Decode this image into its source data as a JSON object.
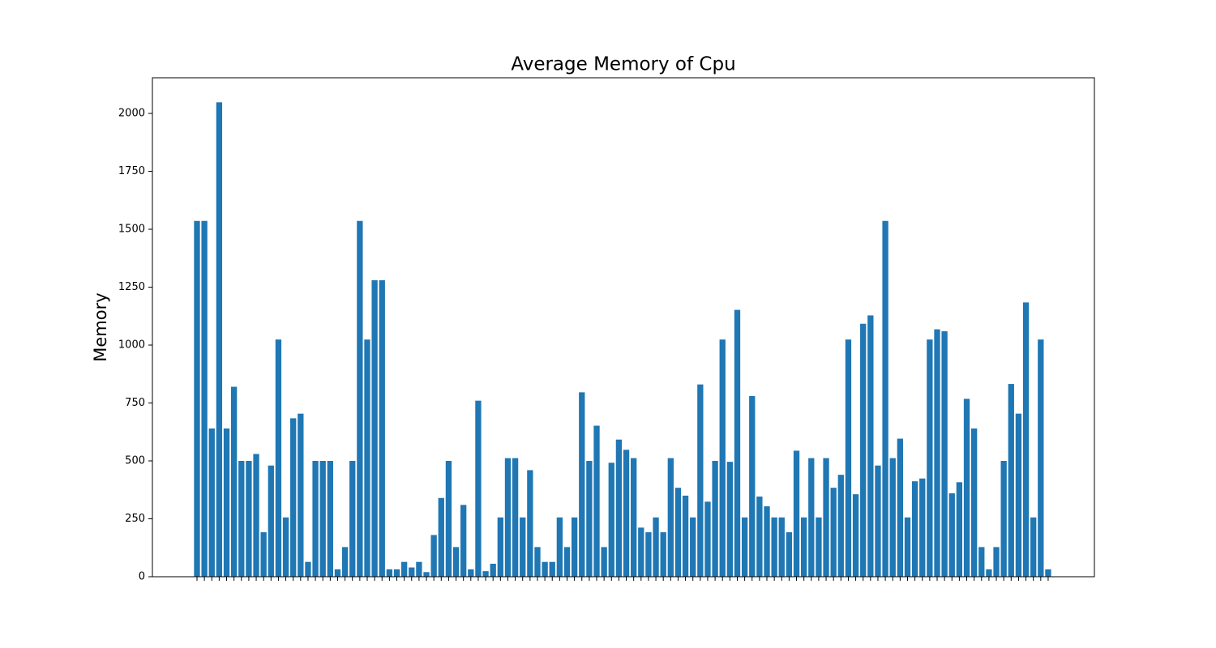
{
  "chart_data": {
    "type": "bar",
    "title": "Average Memory of Cpu",
    "ylabel": "Memory",
    "categories": [
      null,
      null,
      null,
      null,
      null,
      null,
      null,
      null,
      null,
      null,
      null,
      null,
      null,
      null,
      null,
      null,
      null,
      null,
      null,
      null,
      null,
      null,
      null,
      null,
      null,
      null,
      null,
      null,
      null,
      null,
      null,
      null,
      null,
      null,
      null,
      null,
      null,
      null,
      null,
      null,
      null,
      null,
      null,
      null,
      null,
      null,
      null,
      null,
      null,
      null,
      null,
      null,
      null,
      null,
      null,
      null,
      null,
      null,
      null,
      null,
      null,
      null,
      null,
      null,
      null,
      null,
      null,
      null,
      null,
      null,
      null,
      null,
      null,
      null,
      null,
      null,
      null,
      null,
      null,
      null,
      null,
      null,
      null,
      null,
      null,
      null,
      null,
      null,
      null,
      null,
      null,
      null,
      null,
      null,
      null,
      null,
      null,
      null,
      null,
      null,
      null,
      null,
      null,
      null,
      null,
      null,
      null,
      null,
      null,
      null,
      null,
      null,
      null,
      null,
      null,
      null
    ],
    "values": [
      1536,
      1536,
      640,
      2048,
      640,
      820,
      500,
      500,
      530,
      192,
      480,
      1024,
      256,
      684,
      704,
      64,
      500,
      500,
      500,
      32,
      128,
      500,
      1536,
      1024,
      1280,
      1280,
      32,
      32,
      64,
      40,
      64,
      20,
      180,
      340,
      500,
      128,
      310,
      32,
      760,
      24,
      56,
      256,
      512,
      512,
      256,
      460,
      128,
      64,
      64,
      256,
      128,
      256,
      796,
      500,
      652,
      128,
      492,
      592,
      548,
      512,
      212,
      192,
      256,
      192,
      512,
      384,
      350,
      256,
      830,
      324,
      500,
      1024,
      496,
      1152,
      256,
      780,
      346,
      304,
      256,
      256,
      192,
      544,
      256,
      512,
      256,
      512,
      384,
      440,
      1024,
      356,
      1092,
      1128,
      480,
      1536,
      512,
      596,
      256,
      412,
      424,
      1024,
      1068,
      1060,
      360,
      408,
      768,
      640,
      128,
      32,
      128,
      500,
      832,
      704,
      1184,
      256,
      1024,
      32
    ],
    "color": "#1f77b4",
    "ylim": [
      0,
      2154
    ],
    "yticks": [
      0,
      250,
      500,
      750,
      1000,
      1250,
      1500,
      1750,
      2000
    ],
    "grid": false
  }
}
